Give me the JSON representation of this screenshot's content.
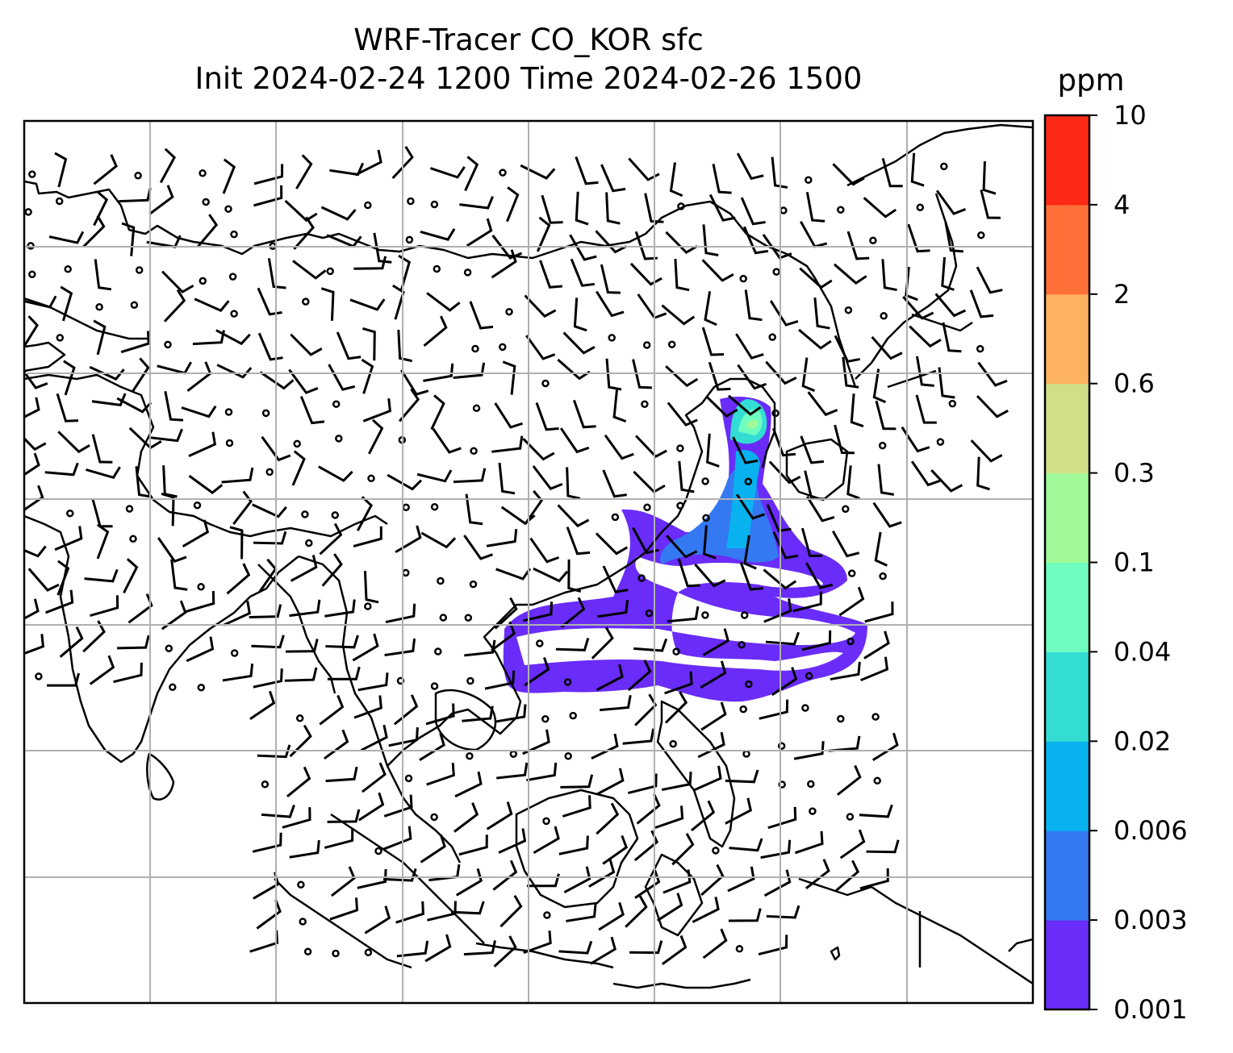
{
  "chart_data": {
    "type": "heatmap",
    "title": "WRF-Tracer CO_KOR sfc",
    "subtitle": "Init 2024-02-24 1200 Time 2024-02-26 1500",
    "colorbar": {
      "label": "ppm",
      "levels": [
        "0.001",
        "0.003",
        "0.006",
        "0.02",
        "0.04",
        "0.1",
        "0.3",
        "0.6",
        "2",
        "4",
        "10"
      ],
      "colors": [
        "#6a2cf8",
        "#3479f2",
        "#08b2ee",
        "#34ddd3",
        "#6ffdc0",
        "#a1fa99",
        "#d1df87",
        "#fdb260",
        "#fe7038",
        "#fe2916"
      ]
    },
    "grid": true,
    "overlays": [
      "coastlines",
      "wind-barbs"
    ]
  }
}
